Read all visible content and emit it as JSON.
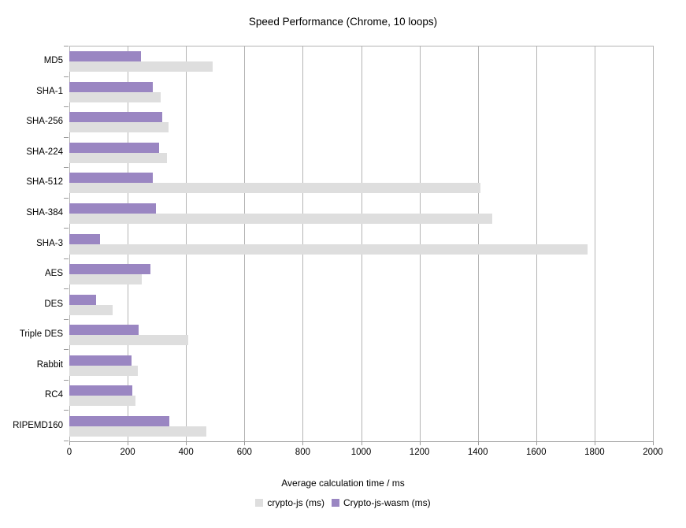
{
  "title": "Speed Performance (Chrome, 10 loops)",
  "x_axis_title": "Average calculation time / ms",
  "colors": {
    "crypto_js": "#dedede",
    "crypto_js_wasm": "#9a86c2",
    "gridline": "#b4b4b4",
    "axis": "#9a9a9a"
  },
  "legend": {
    "items": [
      {
        "label": "crypto-js (ms)",
        "color": "#dedede"
      },
      {
        "label": "Crypto-js-wasm (ms)",
        "color": "#9a86c2"
      }
    ]
  },
  "chart_data": {
    "type": "bar",
    "orientation": "horizontal",
    "title": "Speed Performance (Chrome, 10 loops)",
    "xlabel": "Average calculation time / ms",
    "ylabel": "",
    "categories": [
      "MD5",
      "SHA-1",
      "SHA-256",
      "SHA-224",
      "SHA-512",
      "SHA-384",
      "SHA-3",
      "AES",
      "DES",
      "Triple DES",
      "Rabbit",
      "RC4",
      "RIPEMD160"
    ],
    "series": [
      {
        "name": "crypto-js (ms)",
        "color": "#dedede",
        "values": [
          490,
          314,
          341,
          334,
          1410,
          1450,
          1776,
          249,
          148,
          407,
          236,
          228,
          470
        ]
      },
      {
        "name": "Crypto-js-wasm (ms)",
        "color": "#9a86c2",
        "values": [
          246,
          285,
          318,
          308,
          286,
          297,
          104,
          277,
          93,
          238,
          212,
          217,
          344
        ]
      }
    ],
    "xlim": [
      0,
      2000
    ],
    "xticks": [
      0,
      200,
      400,
      600,
      800,
      1000,
      1200,
      1400,
      1600,
      1800,
      2000
    ],
    "grid": true,
    "legend_position": "bottom",
    "note_bar_order_top_to_bottom": [
      "Crypto-js-wasm (ms)",
      "crypto-js (ms)"
    ]
  }
}
